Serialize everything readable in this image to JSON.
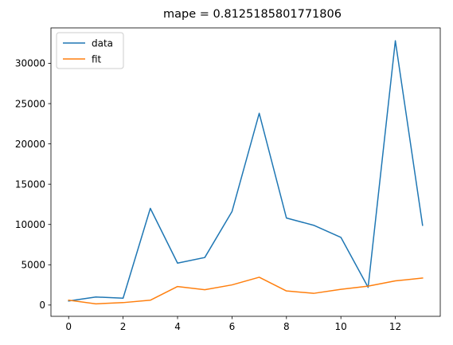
{
  "chart_data": {
    "type": "line",
    "title": "mape = 0.8125185801771806",
    "xlabel": "",
    "ylabel": "",
    "x": [
      0,
      1,
      2,
      3,
      4,
      5,
      6,
      7,
      8,
      9,
      10,
      11,
      12,
      13
    ],
    "xlim": [
      -0.65,
      13.65
    ],
    "ylim": [
      -1400,
      34400
    ],
    "xticks": [
      0,
      2,
      4,
      6,
      8,
      10,
      12
    ],
    "yticks": [
      0,
      5000,
      10000,
      15000,
      20000,
      25000,
      30000
    ],
    "grid": false,
    "legend_position": "top-left",
    "series": [
      {
        "name": "data",
        "color": "#1f77b4",
        "values": [
          500,
          1000,
          850,
          12000,
          5200,
          5900,
          11600,
          23800,
          10800,
          9900,
          8400,
          2200,
          32800,
          9900
        ]
      },
      {
        "name": "fit",
        "color": "#ff7f0e",
        "values": [
          600,
          150,
          300,
          600,
          2300,
          1900,
          2500,
          3450,
          1750,
          1450,
          1950,
          2350,
          3000,
          3350
        ]
      }
    ]
  }
}
